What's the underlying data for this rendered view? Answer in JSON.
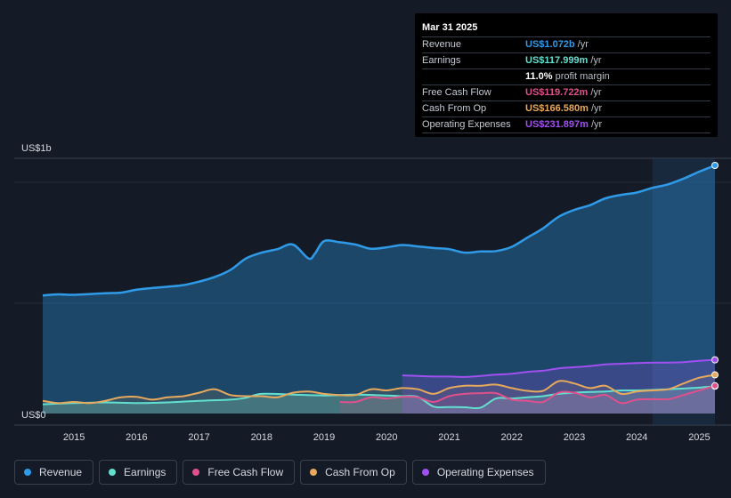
{
  "tooltip": {
    "date": "Mar 31 2025",
    "rows": [
      {
        "label": "Revenue",
        "value": "US$1.072b",
        "unit": "/yr",
        "color": "#2f9be8"
      },
      {
        "label": "Earnings",
        "value": "US$117.999m",
        "unit": "/yr",
        "color": "#62e0cf"
      },
      {
        "label": "",
        "value": "11.0%",
        "unit": "profit margin",
        "color": "#ffffff"
      },
      {
        "label": "Free Cash Flow",
        "value": "US$119.722m",
        "unit": "/yr",
        "color": "#e0508c"
      },
      {
        "label": "Cash From Op",
        "value": "US$166.580m",
        "unit": "/yr",
        "color": "#e8a95c"
      },
      {
        "label": "Operating Expenses",
        "value": "US$231.897m",
        "unit": "/yr",
        "color": "#a050f0"
      }
    ]
  },
  "legend": [
    {
      "label": "Revenue",
      "color": "#2f9be8"
    },
    {
      "label": "Earnings",
      "color": "#62e0cf"
    },
    {
      "label": "Free Cash Flow",
      "color": "#e0508c"
    },
    {
      "label": "Cash From Op",
      "color": "#e8a95c"
    },
    {
      "label": "Operating Expenses",
      "color": "#a050f0"
    }
  ],
  "chart_data": {
    "type": "area",
    "y_top_label": "US$1b",
    "y_bottom_label": "US$0",
    "xlim": [
      2014.5,
      2025.25
    ],
    "ylim": [
      0,
      1.072
    ],
    "x_ticks": [
      "2015",
      "2016",
      "2017",
      "2018",
      "2019",
      "2020",
      "2021",
      "2022",
      "2023",
      "2024",
      "2025"
    ],
    "series": [
      {
        "name": "Revenue",
        "color": "#2f9be8",
        "points": [
          [
            2014.5,
            0.51
          ],
          [
            2014.75,
            0.515
          ],
          [
            2015.0,
            0.513
          ],
          [
            2015.5,
            0.52
          ],
          [
            2015.75,
            0.522
          ],
          [
            2016.0,
            0.535
          ],
          [
            2016.25,
            0.542
          ],
          [
            2016.5,
            0.548
          ],
          [
            2016.75,
            0.555
          ],
          [
            2017.0,
            0.57
          ],
          [
            2017.25,
            0.59
          ],
          [
            2017.5,
            0.62
          ],
          [
            2017.75,
            0.67
          ],
          [
            2018.0,
            0.695
          ],
          [
            2018.25,
            0.71
          ],
          [
            2018.5,
            0.73
          ],
          [
            2018.75,
            0.67
          ],
          [
            2018.85,
            0.69
          ],
          [
            2019.0,
            0.745
          ],
          [
            2019.25,
            0.74
          ],
          [
            2019.5,
            0.73
          ],
          [
            2019.75,
            0.712
          ],
          [
            2020.0,
            0.718
          ],
          [
            2020.25,
            0.728
          ],
          [
            2020.5,
            0.722
          ],
          [
            2020.75,
            0.715
          ],
          [
            2021.0,
            0.71
          ],
          [
            2021.25,
            0.695
          ],
          [
            2021.5,
            0.7
          ],
          [
            2021.75,
            0.702
          ],
          [
            2022.0,
            0.72
          ],
          [
            2022.25,
            0.76
          ],
          [
            2022.5,
            0.8
          ],
          [
            2022.75,
            0.85
          ],
          [
            2023.0,
            0.88
          ],
          [
            2023.25,
            0.9
          ],
          [
            2023.5,
            0.93
          ],
          [
            2023.75,
            0.945
          ],
          [
            2024.0,
            0.955
          ],
          [
            2024.25,
            0.975
          ],
          [
            2024.5,
            0.99
          ],
          [
            2024.75,
            1.015
          ],
          [
            2025.0,
            1.045
          ],
          [
            2025.25,
            1.072
          ]
        ]
      },
      {
        "name": "Earnings",
        "color": "#62e0cf",
        "points": [
          [
            2014.5,
            0.04
          ],
          [
            2015.0,
            0.045
          ],
          [
            2015.5,
            0.048
          ],
          [
            2016.0,
            0.045
          ],
          [
            2016.5,
            0.048
          ],
          [
            2017.0,
            0.055
          ],
          [
            2017.5,
            0.06
          ],
          [
            2017.75,
            0.068
          ],
          [
            2018.0,
            0.085
          ],
          [
            2018.5,
            0.082
          ],
          [
            2019.0,
            0.078
          ],
          [
            2019.5,
            0.082
          ],
          [
            2020.0,
            0.078
          ],
          [
            2020.25,
            0.075
          ],
          [
            2020.5,
            0.072
          ],
          [
            2020.75,
            0.03
          ],
          [
            2021.0,
            0.028
          ],
          [
            2021.25,
            0.027
          ],
          [
            2021.5,
            0.025
          ],
          [
            2021.75,
            0.065
          ],
          [
            2022.0,
            0.065
          ],
          [
            2022.25,
            0.07
          ],
          [
            2022.5,
            0.075
          ],
          [
            2022.75,
            0.085
          ],
          [
            2023.0,
            0.09
          ],
          [
            2023.25,
            0.093
          ],
          [
            2023.5,
            0.095
          ],
          [
            2023.75,
            0.1
          ],
          [
            2024.0,
            0.1
          ],
          [
            2024.25,
            0.102
          ],
          [
            2024.5,
            0.105
          ],
          [
            2024.75,
            0.108
          ],
          [
            2025.0,
            0.112
          ],
          [
            2025.25,
            0.118
          ]
        ]
      },
      {
        "name": "Free Cash Flow",
        "color": "#e0508c",
        "points": [
          [
            2019.25,
            0.05
          ],
          [
            2019.5,
            0.05
          ],
          [
            2019.75,
            0.07
          ],
          [
            2020.0,
            0.065
          ],
          [
            2020.25,
            0.072
          ],
          [
            2020.5,
            0.07
          ],
          [
            2020.75,
            0.05
          ],
          [
            2021.0,
            0.075
          ],
          [
            2021.25,
            0.085
          ],
          [
            2021.5,
            0.088
          ],
          [
            2021.75,
            0.088
          ],
          [
            2022.0,
            0.06
          ],
          [
            2022.25,
            0.055
          ],
          [
            2022.5,
            0.05
          ],
          [
            2022.75,
            0.09
          ],
          [
            2023.0,
            0.09
          ],
          [
            2023.25,
            0.07
          ],
          [
            2023.5,
            0.08
          ],
          [
            2023.75,
            0.045
          ],
          [
            2024.0,
            0.06
          ],
          [
            2024.25,
            0.062
          ],
          [
            2024.5,
            0.062
          ],
          [
            2024.75,
            0.08
          ],
          [
            2025.0,
            0.1
          ],
          [
            2025.25,
            0.12
          ]
        ]
      },
      {
        "name": "Cash From Op",
        "color": "#e8a95c",
        "points": [
          [
            2014.5,
            0.055
          ],
          [
            2014.75,
            0.045
          ],
          [
            2015.0,
            0.05
          ],
          [
            2015.25,
            0.045
          ],
          [
            2015.5,
            0.055
          ],
          [
            2015.75,
            0.07
          ],
          [
            2016.0,
            0.072
          ],
          [
            2016.25,
            0.06
          ],
          [
            2016.5,
            0.07
          ],
          [
            2016.75,
            0.075
          ],
          [
            2017.0,
            0.09
          ],
          [
            2017.25,
            0.105
          ],
          [
            2017.5,
            0.08
          ],
          [
            2017.75,
            0.075
          ],
          [
            2018.0,
            0.075
          ],
          [
            2018.25,
            0.07
          ],
          [
            2018.5,
            0.09
          ],
          [
            2018.75,
            0.095
          ],
          [
            2019.0,
            0.085
          ],
          [
            2019.25,
            0.08
          ],
          [
            2019.5,
            0.08
          ],
          [
            2019.75,
            0.105
          ],
          [
            2020.0,
            0.1
          ],
          [
            2020.25,
            0.11
          ],
          [
            2020.5,
            0.105
          ],
          [
            2020.75,
            0.085
          ],
          [
            2021.0,
            0.11
          ],
          [
            2021.25,
            0.12
          ],
          [
            2021.5,
            0.12
          ],
          [
            2021.75,
            0.125
          ],
          [
            2022.0,
            0.11
          ],
          [
            2022.25,
            0.098
          ],
          [
            2022.5,
            0.098
          ],
          [
            2022.75,
            0.14
          ],
          [
            2023.0,
            0.13
          ],
          [
            2023.25,
            0.11
          ],
          [
            2023.5,
            0.12
          ],
          [
            2023.75,
            0.085
          ],
          [
            2024.0,
            0.095
          ],
          [
            2024.25,
            0.1
          ],
          [
            2024.5,
            0.105
          ],
          [
            2024.75,
            0.13
          ],
          [
            2025.0,
            0.155
          ],
          [
            2025.25,
            0.167
          ]
        ]
      },
      {
        "name": "Operating Expenses",
        "color": "#a050f0",
        "points": [
          [
            2020.25,
            0.165
          ],
          [
            2020.5,
            0.162
          ],
          [
            2020.75,
            0.16
          ],
          [
            2021.0,
            0.16
          ],
          [
            2021.25,
            0.158
          ],
          [
            2021.5,
            0.162
          ],
          [
            2021.75,
            0.168
          ],
          [
            2022.0,
            0.172
          ],
          [
            2022.25,
            0.18
          ],
          [
            2022.5,
            0.185
          ],
          [
            2022.75,
            0.195
          ],
          [
            2023.0,
            0.2
          ],
          [
            2023.25,
            0.205
          ],
          [
            2023.5,
            0.212
          ],
          [
            2023.75,
            0.215
          ],
          [
            2024.0,
            0.218
          ],
          [
            2024.25,
            0.22
          ],
          [
            2024.5,
            0.22
          ],
          [
            2024.75,
            0.222
          ],
          [
            2025.0,
            0.228
          ],
          [
            2025.25,
            0.232
          ]
        ]
      }
    ]
  }
}
